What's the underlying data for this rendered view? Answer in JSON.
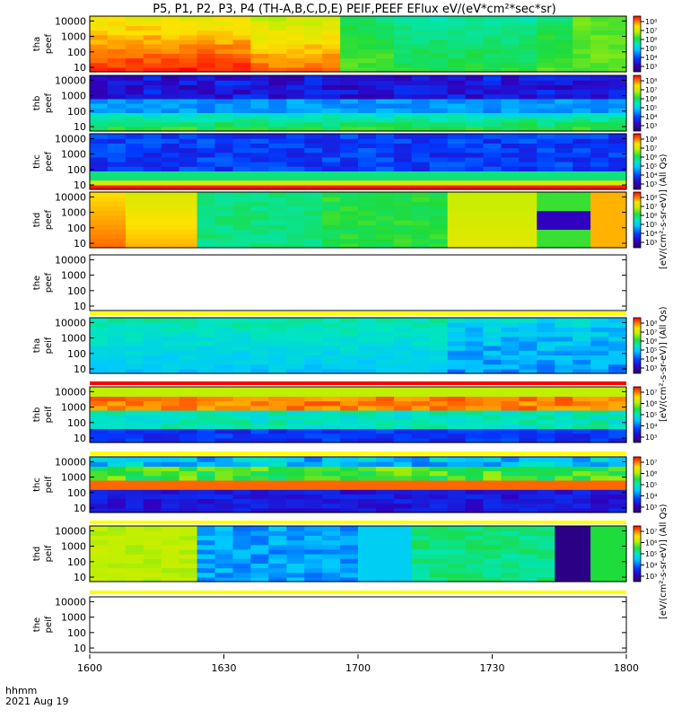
{
  "title": "P5, P1, P2, P3, P4 (TH-A,B,C,D,E) PEIF,PEEF EFlux eV/(eV*cm²*sec*sr)",
  "footer": {
    "time_label": "hhmm",
    "date_label": "2021 Aug 19"
  },
  "x_ticks": [
    "1600",
    "1630",
    "1700",
    "1730",
    "1800"
  ],
  "y_ticks": [
    "10000",
    "1000",
    "100",
    "10"
  ],
  "colorbar_unit_labels": [
    "[eV/(cm²-s-sr-eV)] (All Qs)",
    "[eV/(cm²-s-sr-eV)] (All Qs)",
    "[eV/(cm²-s-sr-eV)] (All Qs)"
  ],
  "colors": {
    "red": "#ff0000",
    "yellow": "#ffff00",
    "blue": "#0000ff",
    "navy": "#2000a0"
  },
  "chart_data": {
    "type": "heatmap",
    "x_range": [
      "1600",
      "1800"
    ],
    "y_range_eV": [
      5,
      30000
    ],
    "y_scale": "log",
    "colorscale": "rainbow (purple → blue → cyan → green → yellow → red)",
    "panels": [
      {
        "ylabel": [
          "tha",
          "peef"
        ],
        "colorbar_ticks": [
          "10⁸",
          "10⁷",
          "10⁶",
          "10⁵",
          "10⁴",
          "10³"
        ],
        "has_data": true
      },
      {
        "ylabel": [
          "thb",
          "peef"
        ],
        "colorbar_ticks": [
          "10⁸",
          "10⁷",
          "10⁶",
          "10⁵",
          "10⁴",
          "10³"
        ],
        "has_data": true
      },
      {
        "ylabel": [
          "thc",
          "peef"
        ],
        "colorbar_ticks": [
          "10⁸",
          "10⁷",
          "10⁶",
          "10⁵",
          "10⁴",
          "10³"
        ],
        "has_data": true
      },
      {
        "ylabel": [
          "thd",
          "peef"
        ],
        "colorbar_ticks": [
          "10⁸",
          "10⁷",
          "10⁶",
          "10⁵",
          "10⁴",
          "10³"
        ],
        "has_data": true
      },
      {
        "ylabel": [
          "the",
          "peef"
        ],
        "colorbar_ticks": [],
        "has_data": false
      },
      {
        "ylabel": [
          "tha",
          "peif"
        ],
        "colorbar_ticks": [
          "10⁸",
          "10⁷",
          "10⁶",
          "10⁵",
          "10⁴",
          "10³"
        ],
        "has_data": true
      },
      {
        "ylabel": [
          "thb",
          "peif"
        ],
        "colorbar_ticks": [
          "10⁷",
          "10⁶",
          "10⁵",
          "10⁴",
          "10³"
        ],
        "has_data": true
      },
      {
        "ylabel": [
          "thc",
          "peif"
        ],
        "colorbar_ticks": [
          "10⁷",
          "10⁶",
          "10⁵",
          "10⁴",
          "10³"
        ],
        "has_data": true
      },
      {
        "ylabel": [
          "thd",
          "peif"
        ],
        "colorbar_ticks": [
          "10⁷",
          "10⁶",
          "10⁵",
          "10⁴",
          "10³"
        ],
        "has_data": true
      },
      {
        "ylabel": [
          "the",
          "peif"
        ],
        "colorbar_ticks": [],
        "has_data": false
      }
    ]
  }
}
